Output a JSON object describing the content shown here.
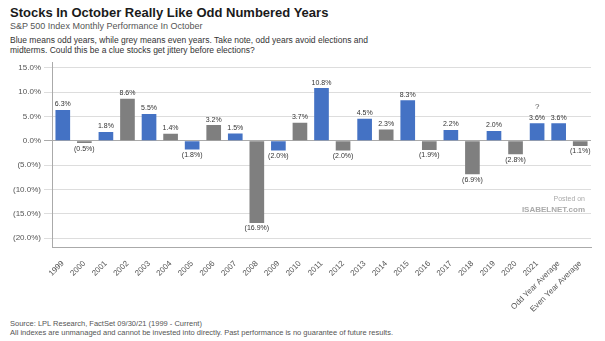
{
  "chart_data": {
    "type": "bar",
    "title": "Stocks In October Really Like Odd Numbered Years",
    "subtitle": "S&P 500 Index Monthly Performance In October",
    "annotations": [
      "Blue means odd years, while grey means even years. Take note, odd years avoid elections and",
      "midterms. Could this be a clue stocks get jittery before elections?"
    ],
    "source": [
      "Source: LPL Research, FactSet 09/30/21 (1999 - Current)",
      "All indexes are unmanaged and cannot be invested into directly. Past performance is no guarantee of future results."
    ],
    "watermark": [
      "Posted on",
      "ISABELNET.com"
    ],
    "bar_notes": [
      {
        "category": "2021",
        "text": "?"
      }
    ],
    "categories": [
      "1999",
      "2000",
      "2001",
      "2002",
      "2003",
      "2004",
      "2005",
      "2006",
      "2007",
      "2008",
      "2009",
      "2010",
      "2011",
      "2012",
      "2013",
      "2014",
      "2015",
      "2016",
      "2017",
      "2018",
      "2019",
      "2020",
      "2021",
      "Odd Year Average",
      "Even Year Average"
    ],
    "values": [
      6.3,
      -0.5,
      1.8,
      8.6,
      5.5,
      1.4,
      -1.8,
      3.2,
      1.5,
      -16.9,
      -2.0,
      3.7,
      10.8,
      -2.0,
      4.5,
      2.3,
      8.3,
      -1.9,
      2.2,
      -6.9,
      2.0,
      -2.8,
      3.6,
      3.6,
      -1.1
    ],
    "value_labels": [
      "6.3%",
      "(0.5%)",
      "1.8%",
      "8.6%",
      "5.5%",
      "1.4%",
      "(1.8%)",
      "3.2%",
      "1.5%",
      "(16.9%)",
      "(2.0%)",
      "3.7%",
      "10.8%",
      "(2.0%)",
      "4.5%",
      "2.3%",
      "8.3%",
      "(1.9%)",
      "2.2%",
      "(6.9%)",
      "2.0%",
      "(2.8%)",
      "3.6%",
      "3.6%",
      "(1.1%)"
    ],
    "colors": [
      "#4472C4",
      "#7F7F7F",
      "#4472C4",
      "#7F7F7F",
      "#4472C4",
      "#7F7F7F",
      "#4472C4",
      "#7F7F7F",
      "#4472C4",
      "#7F7F7F",
      "#4472C4",
      "#7F7F7F",
      "#4472C4",
      "#7F7F7F",
      "#4472C4",
      "#7F7F7F",
      "#4472C4",
      "#7F7F7F",
      "#4472C4",
      "#7F7F7F",
      "#4472C4",
      "#7F7F7F",
      "#4472C4",
      "#4472C4",
      "#7F7F7F"
    ],
    "ylim": [
      -22,
      16
    ],
    "yticks": [
      {
        "value": -20,
        "label": "(20.0%)"
      },
      {
        "value": -15,
        "label": "(15.0%)"
      },
      {
        "value": -10,
        "label": "(10.0%)"
      },
      {
        "value": -5,
        "label": "(5.0%)"
      },
      {
        "value": 0,
        "label": "0.0%"
      },
      {
        "value": 5,
        "label": "5.0%"
      },
      {
        "value": 10,
        "label": "10.0%"
      },
      {
        "value": 15,
        "label": "15.0%"
      }
    ],
    "grid": true,
    "data_labels": true
  }
}
